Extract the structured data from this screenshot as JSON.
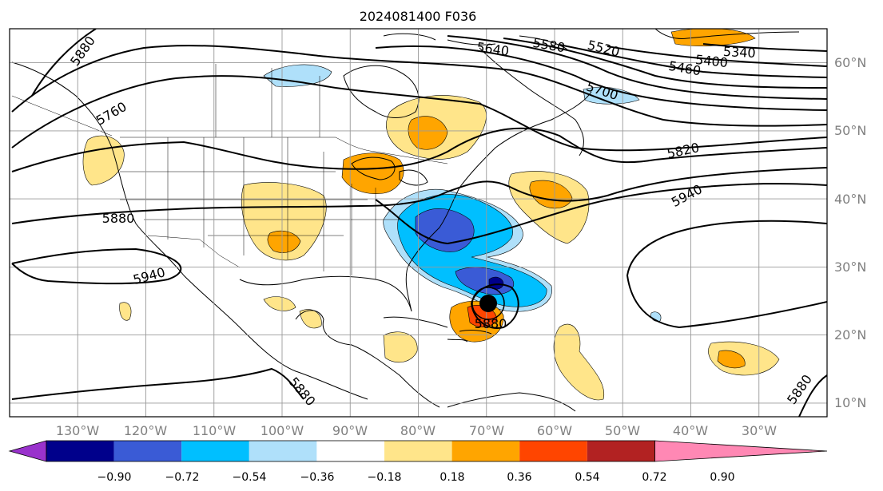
{
  "title": "2024081400 F036",
  "map": {
    "lon_range": [
      -140,
      -20
    ],
    "lat_range": [
      8,
      65
    ],
    "lon_ticks": [
      "130°W",
      "120°W",
      "110°W",
      "100°W",
      "90°W",
      "80°W",
      "70°W",
      "60°W",
      "50°W",
      "40°W",
      "30°W"
    ],
    "lat_ticks": [
      "60°N",
      "50°N",
      "40°N",
      "30°N",
      "20°N",
      "10°N"
    ],
    "gridlines": true
  },
  "contour_labels": [
    "5640",
    "5580",
    "5520",
    "5460",
    "5400",
    "5340",
    "5700",
    "5760",
    "5820",
    "5880",
    "5940",
    "5880",
    "5940",
    "5880",
    "5880",
    "5880"
  ],
  "colorbar": {
    "ticks": [
      "−0.90",
      "−0.72",
      "−0.54",
      "−0.36",
      "−0.18",
      "0.18",
      "0.36",
      "0.54",
      "0.72",
      "0.90"
    ],
    "colors": [
      "#9932cc",
      "#00008b",
      "#3a5bd6",
      "#00bfff",
      "#afe0fa",
      "#ffffff",
      "#ffe58a",
      "#ffa500",
      "#ff4500",
      "#b22222",
      "#ff88b4"
    ],
    "extend": "both"
  },
  "icons": {
    "storm": "tropical-storm-icon"
  }
}
